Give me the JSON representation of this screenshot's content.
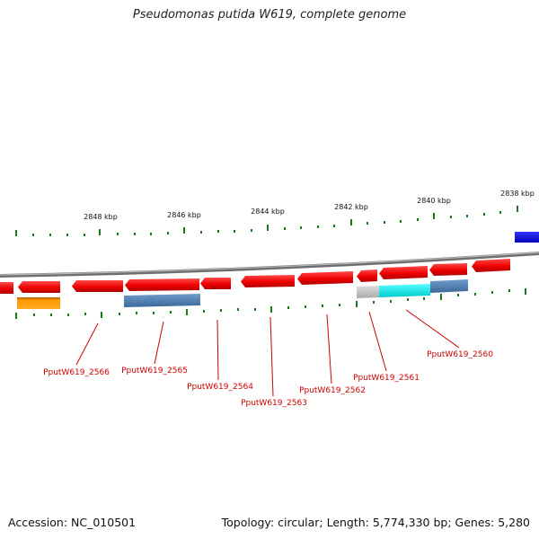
{
  "title": "Pseudomonas putida W619, complete genome",
  "accession_text": "Accession: NC_010501",
  "summary_text": "Topology: circular; Length: 5,774,330 bp; Genes: 5,280",
  "scale_labels": [
    "2848 kbp",
    "2846 kbp",
    "2844 kbp",
    "2842 kbp",
    "2840 kbp",
    "2838 kbp"
  ],
  "gene_labels": [
    "PputW619_2566",
    "PputW619_2565",
    "PputW619_2564",
    "PputW619_2563",
    "PputW619_2562",
    "PputW619_2561",
    "PputW619_2560"
  ],
  "colors": {
    "gene_red": "#ee0000",
    "backbone": "#808080",
    "tick_green": "#1a7a1a",
    "label_red": "#cc0000",
    "orange": "#ff9900",
    "steel_blue": "#4a7aaa",
    "cyan": "#00eeee",
    "light_gray": "#c8c8c8",
    "blue": "#0000ee"
  }
}
